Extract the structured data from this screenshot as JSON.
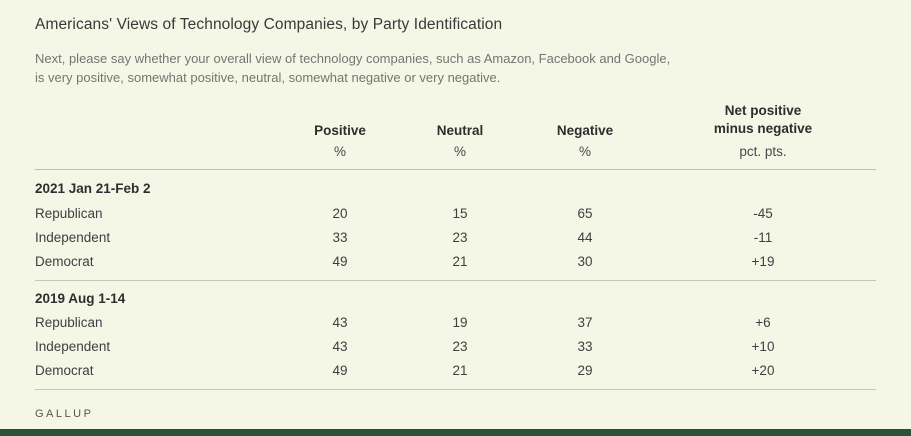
{
  "page": {
    "title": "Americans' Views of Technology Companies, by Party Identification",
    "subtitle": "Next, please say whether your overall view of technology companies, such as Amazon, Facebook and Google, is very positive, somewhat positive, neutral, somewhat negative or very negative.",
    "brand": "GALLUP"
  },
  "colors": {
    "background": "#f4f6e6",
    "bottom_bar": "#2c503a"
  },
  "table": {
    "headers": {
      "positive": "Positive",
      "neutral": "Neutral",
      "negative": "Negative",
      "net_line1": "Net positive",
      "net_line2": "minus negative"
    },
    "units": {
      "positive": "%",
      "neutral": "%",
      "negative": "%",
      "net": "pct. pts."
    },
    "sections": [
      {
        "date": "2021 Jan 21-Feb 2",
        "rows": [
          {
            "party": "Republican",
            "positive": "20",
            "neutral": "15",
            "negative": "65",
            "net": "-45"
          },
          {
            "party": "Independent",
            "positive": "33",
            "neutral": "23",
            "negative": "44",
            "net": "-11"
          },
          {
            "party": "Democrat",
            "positive": "49",
            "neutral": "21",
            "negative": "30",
            "net": "+19"
          }
        ]
      },
      {
        "date": "2019 Aug 1-14",
        "rows": [
          {
            "party": "Republican",
            "positive": "43",
            "neutral": "19",
            "negative": "37",
            "net": "+6"
          },
          {
            "party": "Independent",
            "positive": "43",
            "neutral": "23",
            "negative": "33",
            "net": "+10"
          },
          {
            "party": "Democrat",
            "positive": "49",
            "neutral": "21",
            "negative": "29",
            "net": "+20"
          }
        ]
      }
    ]
  },
  "chart_data": {
    "type": "table",
    "title": "Americans' Views of Technology Companies, by Party Identification",
    "question": "Next, please say whether your overall view of technology companies, such as Amazon, Facebook and Google, is very positive, somewhat positive, neutral, somewhat negative or very negative.",
    "columns": [
      "Positive (%)",
      "Neutral (%)",
      "Negative (%)",
      "Net positive minus negative (pct. pts.)"
    ],
    "groups": [
      {
        "period": "2021 Jan 21-Feb 2",
        "rows": [
          {
            "category": "Republican",
            "positive": 20,
            "neutral": 15,
            "negative": 65,
            "net": -45
          },
          {
            "category": "Independent",
            "positive": 33,
            "neutral": 23,
            "negative": 44,
            "net": -11
          },
          {
            "category": "Democrat",
            "positive": 49,
            "neutral": 21,
            "negative": 30,
            "net": 19
          }
        ]
      },
      {
        "period": "2019 Aug 1-14",
        "rows": [
          {
            "category": "Republican",
            "positive": 43,
            "neutral": 19,
            "negative": 37,
            "net": 6
          },
          {
            "category": "Independent",
            "positive": 43,
            "neutral": 23,
            "negative": 33,
            "net": 10
          },
          {
            "category": "Democrat",
            "positive": 49,
            "neutral": 21,
            "negative": 29,
            "net": 20
          }
        ]
      }
    ],
    "source": "GALLUP"
  }
}
